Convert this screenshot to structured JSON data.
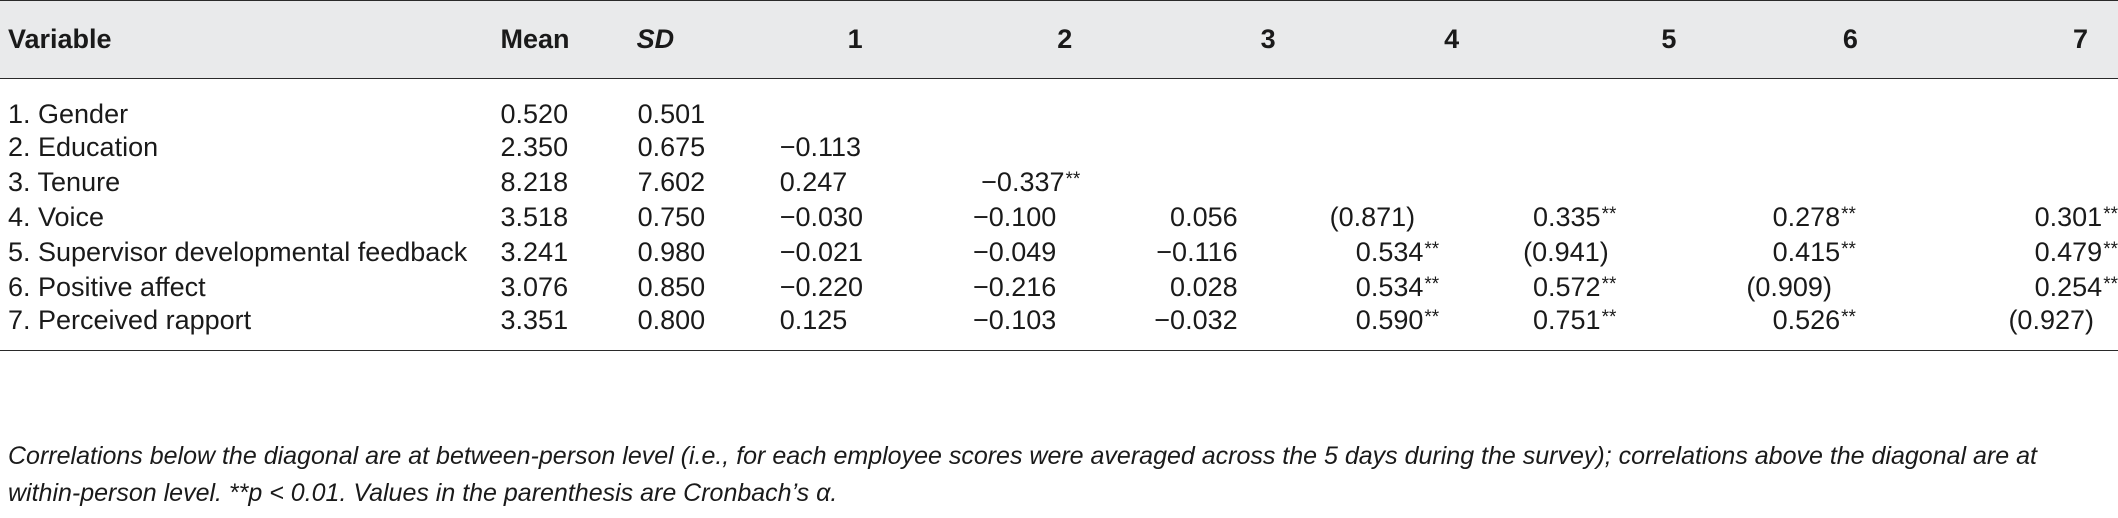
{
  "table": {
    "headers": {
      "variable": "Variable",
      "mean": "Mean",
      "sd": "SD",
      "c1": "1",
      "c2": "2",
      "c3": "3",
      "c4": "4",
      "c5": "5",
      "c6": "6",
      "c7": "7"
    },
    "rows": [
      {
        "variable": "1. Gender",
        "mean": "0.520",
        "sd": "0.501",
        "c1": "",
        "c2": "",
        "c3": "",
        "c4": "",
        "c5": "",
        "c6": "",
        "c7": ""
      },
      {
        "variable": "2. Education",
        "mean": "2.350",
        "sd": "0.675",
        "c1": "−0.113",
        "c2": "",
        "c3": "",
        "c4": "",
        "c5": "",
        "c6": "",
        "c7": ""
      },
      {
        "variable": "3. Tenure",
        "mean": "8.218",
        "sd": "7.602",
        "c1": "0.247",
        "c2": "−0.337",
        "c2_sig": "**",
        "c3": "",
        "c4": "",
        "c5": "",
        "c6": "",
        "c7": ""
      },
      {
        "variable": "4. Voice",
        "mean": "3.518",
        "sd": "0.750",
        "c1": "−0.030",
        "c2": "−0.100",
        "c3": "0.056",
        "c4": "(0.871)",
        "c5": "0.335",
        "c5_sig": "**",
        "c6": "0.278",
        "c6_sig": "**",
        "c7": "0.301",
        "c7_sig": "**"
      },
      {
        "variable": "5. Supervisor developmental feedback",
        "mean": "3.241",
        "sd": "0.980",
        "c1": "−0.021",
        "c2": "−0.049",
        "c3": "−0.116",
        "c4": "0.534",
        "c4_sig": "**",
        "c5": "(0.941)",
        "c6": "0.415",
        "c6_sig": "**",
        "c7": "0.479",
        "c7_sig": "**"
      },
      {
        "variable": "6. Positive affect",
        "mean": "3.076",
        "sd": "0.850",
        "c1": "−0.220",
        "c2": "−0.216",
        "c3": "0.028",
        "c4": "0.534",
        "c4_sig": "**",
        "c5": "0.572",
        "c5_sig": "**",
        "c6": "(0.909)",
        "c7": "0.254",
        "c7_sig": "**"
      },
      {
        "variable": "7. Perceived rapport",
        "mean": "3.351",
        "sd": "0.800",
        "c1": "0.125",
        "c2": "−0.103",
        "c3": "−0.032",
        "c4": "0.590",
        "c4_sig": "**",
        "c5": "0.751",
        "c5_sig": "**",
        "c6": "0.526",
        "c6_sig": "**",
        "c7": "(0.927)"
      }
    ]
  },
  "note": "Correlations below the diagonal are at between-person level (i.e., for each employee scores were averaged across the 5 days during the survey); correlations above the diagonal are at within-person level. **p < 0.01. Values in the parenthesis are Cronbach’s α."
}
